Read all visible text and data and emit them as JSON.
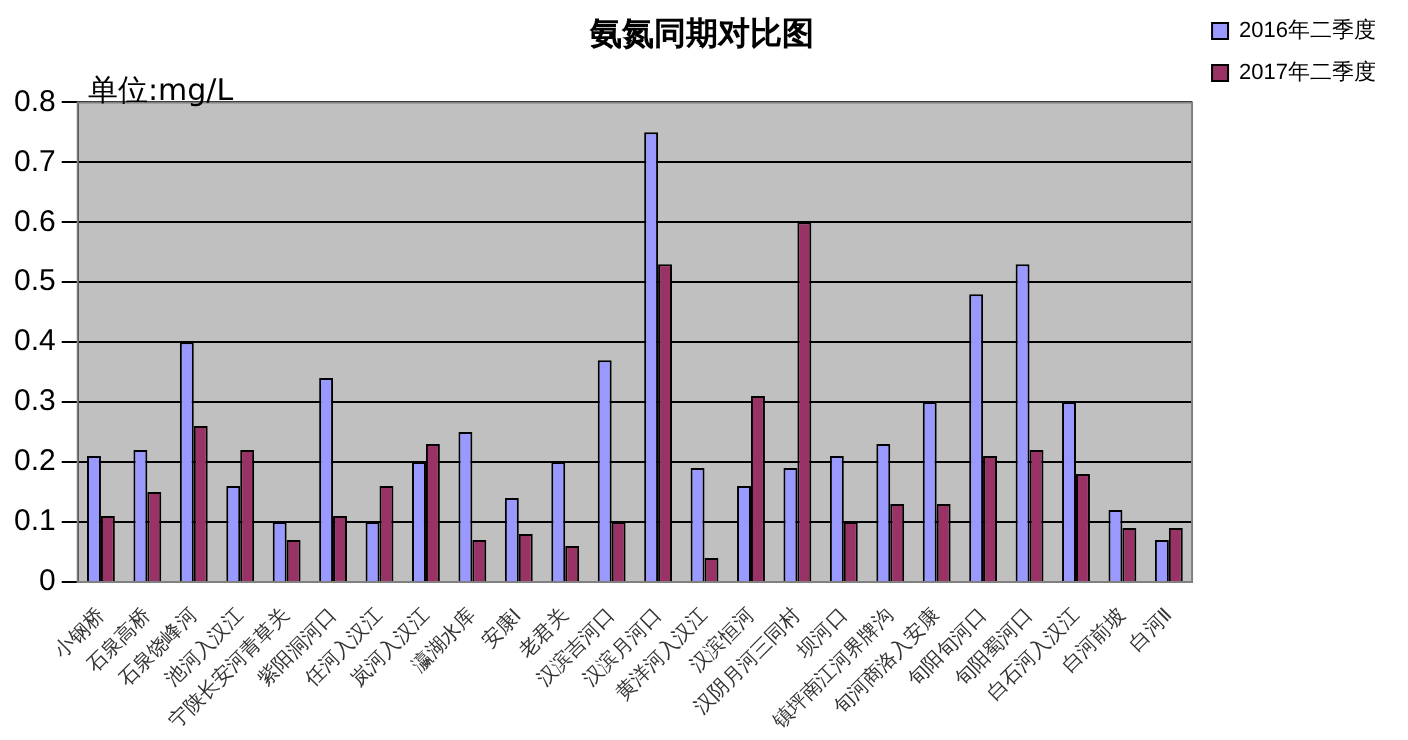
{
  "chart_data": {
    "type": "bar",
    "title": "氨氮同期对比图",
    "annotations": [
      "单位:mg/L"
    ],
    "categories": [
      "小钢桥",
      "石泉高桥",
      "石泉饶峰河",
      "池河入汉江",
      "宁陕长安河青草关",
      "紫阳洞河口",
      "任河入汉江",
      "岚河入汉江",
      "瀛湖水库",
      "安康Ⅰ",
      "老君关",
      "汉滨吉河口",
      "汉滨月河口",
      "黄洋河入汉江",
      "汉滨恒河",
      "汉阴月河三同村",
      "坝河口",
      "镇坪南江河界牌沟",
      "旬河商洛入安康",
      "旬阳旬河口",
      "旬阳蜀河口",
      "白石河入汉江",
      "白河前坡",
      "白河Ⅱ"
    ],
    "series": [
      {
        "name": "2016年二季度",
        "color": "#9999ff",
        "values": [
          0.21,
          0.22,
          0.4,
          0.16,
          0.1,
          0.34,
          0.1,
          0.2,
          0.25,
          0.14,
          0.2,
          0.37,
          0.75,
          0.19,
          0.16,
          0.19,
          0.21,
          0.23,
          0.3,
          0.48,
          0.53,
          0.3,
          0.12,
          0.07
        ]
      },
      {
        "name": "2017年二季度",
        "color": "#993366",
        "values": [
          0.11,
          0.15,
          0.26,
          0.22,
          0.07,
          0.11,
          0.16,
          0.23,
          0.07,
          0.08,
          0.06,
          0.1,
          0.53,
          0.04,
          0.31,
          0.6,
          0.1,
          0.13,
          0.13,
          0.21,
          0.22,
          0.18,
          0.09,
          0.09
        ]
      }
    ],
    "ylim": [
      0,
      0.8
    ],
    "yticks": [
      0,
      0.1,
      0.2,
      0.3,
      0.4,
      0.5,
      0.6,
      0.7,
      0.8
    ],
    "grid": "y",
    "legend": "top right"
  }
}
